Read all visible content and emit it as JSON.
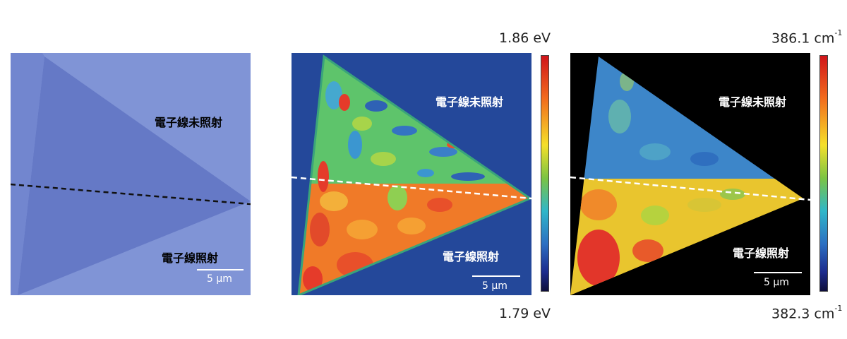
{
  "panels": {
    "optical": {
      "unirradiated_label": "電子線未照射",
      "irradiated_label": "電子線照射",
      "scale_label": "5 μm"
    },
    "pl_map": {
      "unirradiated_label": "電子線未照射",
      "irradiated_label": "電子線照射",
      "scale_label": "5 μm",
      "colorbar_max": "1.86 eV",
      "colorbar_min": "1.79 eV"
    },
    "raman_map": {
      "unirradiated_label": "電子線未照射",
      "irradiated_label": "電子線照射",
      "scale_label": "5 μm",
      "colorbar_max_value": "386.1 cm",
      "colorbar_max_exponent": "-1",
      "colorbar_min_value": "382.3 cm",
      "colorbar_min_exponent": "-1"
    }
  },
  "colors": {
    "optical_background": "#7f93d6",
    "optical_triangle": "#6378c4",
    "pl_background": "#24489a",
    "pl_unirradiated": "#5ec46b",
    "pl_irradiated": "#f07a28",
    "raman_background": "#000000",
    "raman_unirradiated": "#3d86c9",
    "raman_irradiated": "#e9c52e",
    "dashed_line_optical": "#111111",
    "dashed_line_maps": "#ffffff"
  }
}
